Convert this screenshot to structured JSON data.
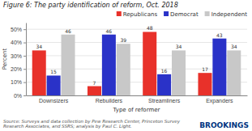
{
  "chart_data": {
    "type": "bar",
    "title": "Figure 6: The party identification of reform, Oct. 2018",
    "categories": [
      "Downsizers",
      "Rebuilders",
      "Streamliners",
      "Expanders"
    ],
    "series": [
      {
        "name": "Republicans",
        "color": "#e8312a",
        "values": [
          34,
          7,
          48,
          17
        ]
      },
      {
        "name": "Democrat",
        "color": "#2a32c8",
        "values": [
          15,
          46,
          16,
          43
        ]
      },
      {
        "name": "Independent",
        "color": "#c8c8c8",
        "values": [
          46,
          39,
          34,
          34
        ]
      }
    ],
    "xlabel": "Type of reformer",
    "ylabel": "Percent",
    "ylim": [
      0,
      55
    ],
    "yticks": [
      {
        "value": 0,
        "label": "0%"
      },
      {
        "value": 10,
        "label": "10%"
      },
      {
        "value": 20,
        "label": "20%"
      },
      {
        "value": 30,
        "label": "30%"
      },
      {
        "value": 40,
        "label": "40%"
      },
      {
        "value": 50,
        "label": "50%"
      }
    ],
    "grid": true,
    "legend": "upper right",
    "data_labels": true,
    "annotations": [
      "Source: Surveys and data collection by Pew Research Center, Princeton Survey\nResearch Associates, and SSRS; analysis by Paul C. Light.",
      "BROOKINGS"
    ]
  }
}
